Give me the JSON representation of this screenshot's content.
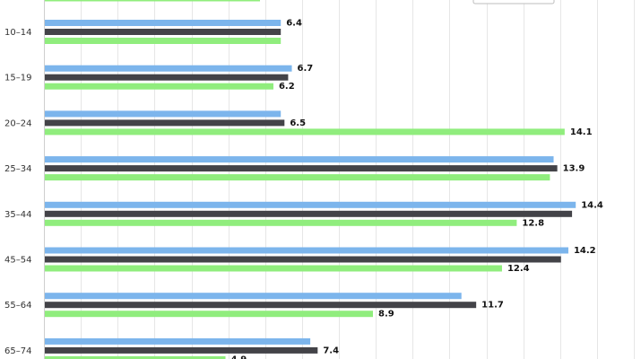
{
  "chart_data": {
    "type": "bar",
    "orientation": "horizontal",
    "categories": [
      "10–14",
      "15–19",
      "20–24",
      "25–34",
      "35–44",
      "45–54",
      "55–64",
      "65–74"
    ],
    "series": [
      {
        "color": "#7cb5ec",
        "values": [
          6.4,
          6.7,
          6.4,
          13.8,
          14.4,
          14.2,
          11.3,
          7.2
        ]
      },
      {
        "color": "#434348",
        "values": [
          6.4,
          6.6,
          6.5,
          13.9,
          14.3,
          14.0,
          11.7,
          7.4
        ]
      },
      {
        "color": "#90ed7d",
        "values": [
          6.4,
          6.2,
          14.1,
          13.7,
          12.8,
          12.4,
          8.9,
          4.9
        ]
      }
    ],
    "data_labels": [
      [
        "6.4",
        "",
        ""
      ],
      [
        "6.7",
        "",
        "6.2"
      ],
      [
        "",
        "6.5",
        "14.1"
      ],
      [
        "",
        "13.9",
        ""
      ],
      [
        "14.4",
        "",
        "12.8"
      ],
      [
        "14.2",
        "",
        "12.4"
      ],
      [
        "",
        "11.7",
        "8.9"
      ],
      [
        "",
        "7.4",
        "4.9"
      ]
    ],
    "xlim": [
      0,
      16
    ],
    "grid": true,
    "legend_position": "top-right"
  }
}
